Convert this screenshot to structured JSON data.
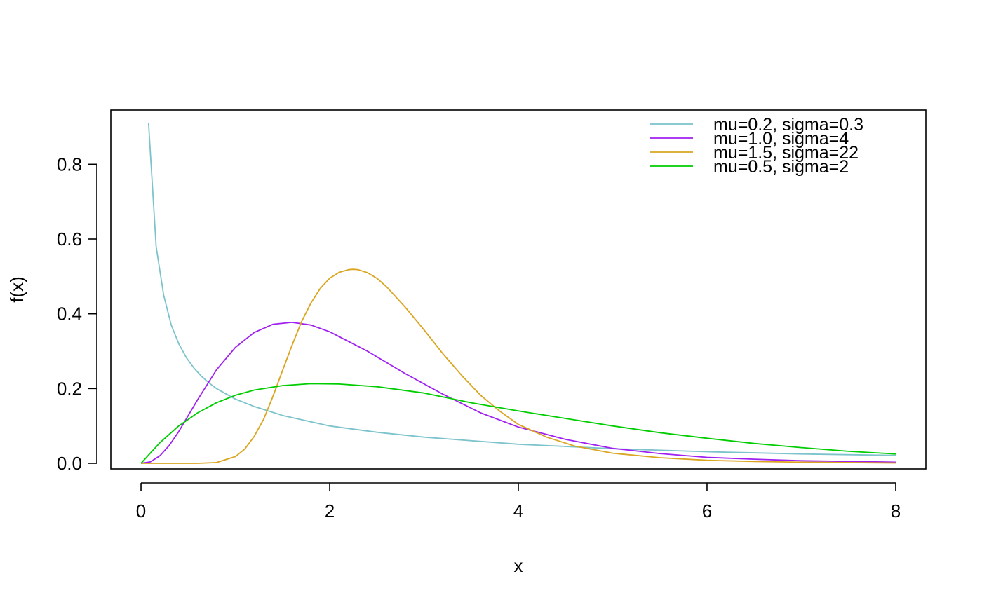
{
  "chart_data": {
    "type": "line",
    "title": "",
    "xlabel": "x",
    "ylabel": "f(x)",
    "xlim": [
      -0.32,
      8.32
    ],
    "ylim": [
      -0.015,
      0.945
    ],
    "xticks": [
      0,
      2,
      4,
      6,
      8
    ],
    "yticks": [
      0.0,
      0.2,
      0.4,
      0.6,
      0.8
    ],
    "xtick_labels": [
      "0",
      "2",
      "4",
      "6",
      "8"
    ],
    "ytick_labels": [
      "0.0",
      "0.2",
      "0.4",
      "0.6",
      "0.8"
    ],
    "grid": false,
    "legend_position": "top-right",
    "series": [
      {
        "name": "mu=0.2, sigma=0.3",
        "color": "#7cc3cb",
        "x": [
          0.08,
          0.16,
          0.24,
          0.32,
          0.4,
          0.48,
          0.56,
          0.64,
          0.72,
          0.8,
          1.0,
          1.2,
          1.5,
          2.0,
          2.5,
          3.0,
          4.0,
          5.0,
          6.0,
          7.0,
          8.0
        ],
        "y": [
          0.91,
          0.58,
          0.45,
          0.37,
          0.32,
          0.283,
          0.255,
          0.233,
          0.215,
          0.2,
          0.172,
          0.152,
          0.128,
          0.1,
          0.083,
          0.07,
          0.051,
          0.039,
          0.031,
          0.025,
          0.021
        ]
      },
      {
        "name": "mu=1.0, sigma=4",
        "color": "#a020f0",
        "x": [
          0.0,
          0.1,
          0.2,
          0.3,
          0.4,
          0.6,
          0.8,
          1.0,
          1.2,
          1.4,
          1.6,
          1.8,
          2.0,
          2.4,
          2.8,
          3.2,
          3.6,
          4.0,
          4.5,
          5.0,
          5.5,
          6.0,
          6.5,
          7.0,
          7.5,
          8.0
        ],
        "y": [
          0.0,
          0.004,
          0.02,
          0.048,
          0.085,
          0.17,
          0.25,
          0.31,
          0.35,
          0.372,
          0.377,
          0.37,
          0.352,
          0.3,
          0.24,
          0.185,
          0.135,
          0.097,
          0.064,
          0.04,
          0.026,
          0.016,
          0.011,
          0.007,
          0.005,
          0.003
        ]
      },
      {
        "name": "mu=1.5, sigma=22",
        "color": "#daa520",
        "x": [
          0.0,
          0.3,
          0.6,
          0.8,
          1.0,
          1.1,
          1.2,
          1.3,
          1.4,
          1.5,
          1.6,
          1.7,
          1.8,
          1.9,
          2.0,
          2.1,
          2.2,
          2.25,
          2.3,
          2.4,
          2.5,
          2.6,
          2.8,
          3.0,
          3.2,
          3.4,
          3.6,
          3.8,
          4.0,
          4.3,
          4.6,
          5.0,
          5.5,
          6.0,
          6.5,
          7.0,
          8.0
        ],
        "y": [
          0.0,
          0.0,
          0.0,
          0.002,
          0.018,
          0.038,
          0.072,
          0.118,
          0.18,
          0.248,
          0.315,
          0.378,
          0.428,
          0.468,
          0.495,
          0.511,
          0.518,
          0.519,
          0.518,
          0.51,
          0.495,
          0.473,
          0.418,
          0.357,
          0.293,
          0.235,
          0.182,
          0.14,
          0.104,
          0.07,
          0.046,
          0.027,
          0.015,
          0.008,
          0.005,
          0.003,
          0.001
        ]
      },
      {
        "name": "mu=0.5, sigma=2",
        "color": "#00cd00",
        "x": [
          0.0,
          0.2,
          0.4,
          0.6,
          0.8,
          1.0,
          1.2,
          1.5,
          1.8,
          2.1,
          2.5,
          3.0,
          3.5,
          4.0,
          4.5,
          5.0,
          5.5,
          6.0,
          6.5,
          7.0,
          7.5,
          8.0
        ],
        "y": [
          0.0,
          0.055,
          0.1,
          0.135,
          0.162,
          0.182,
          0.196,
          0.208,
          0.213,
          0.212,
          0.205,
          0.188,
          0.162,
          0.14,
          0.12,
          0.1,
          0.082,
          0.067,
          0.053,
          0.042,
          0.032,
          0.025
        ]
      }
    ]
  }
}
